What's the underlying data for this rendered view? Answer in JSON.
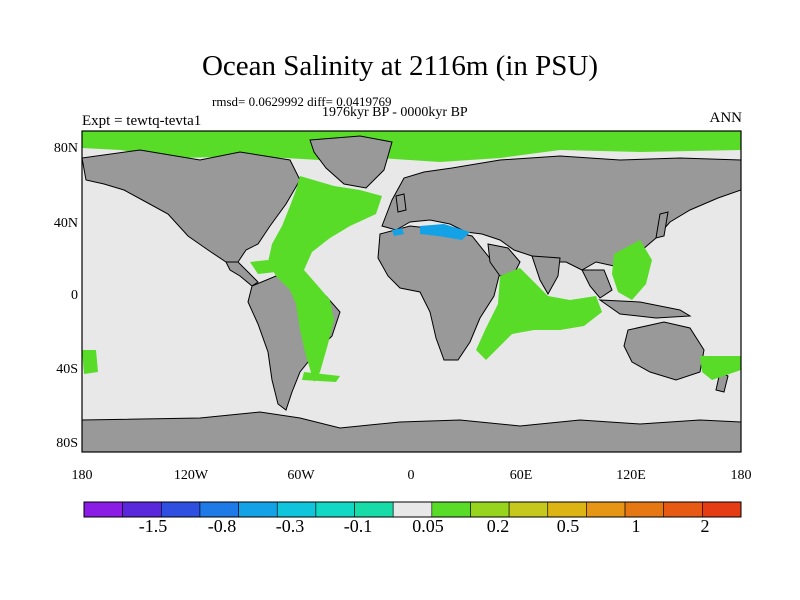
{
  "title": "Ocean Salinity at 2116m (in PSU)",
  "stats_line": "rmsd= 0.0629992 diff= 0.0419769",
  "period": "1976kyr BP - 0000kyr BP",
  "experiment": "Expt = tewtq-tevta1",
  "season": "ANN",
  "axes": {
    "y_ticks": [
      "80N",
      "40N",
      "0",
      "40S",
      "80S"
    ],
    "x_ticks": [
      "180",
      "120W",
      "60W",
      "0",
      "60E",
      "120E",
      "180"
    ]
  },
  "colorbar": {
    "colors": [
      "#8a1ce6",
      "#5a28dc",
      "#2f4fe0",
      "#1e7ae6",
      "#14a2e6",
      "#10c4dc",
      "#10d8c4",
      "#18dca8",
      "#e8e8e8",
      "#58dc28",
      "#96d41e",
      "#c6c81e",
      "#dcb414",
      "#e69614",
      "#e67814",
      "#e65a14",
      "#e63c14"
    ],
    "labels": [
      "-1.5",
      "-0.8",
      "-0.3",
      "-0.1",
      "0.05",
      "0.2",
      "0.5",
      "1",
      "2"
    ]
  },
  "colors": {
    "land": "#999999",
    "ocean_neutral": "#e8e8e8",
    "positive_anomaly": "#58dc28",
    "negative_anomaly": "#14a2e6",
    "coast": "#000000"
  }
}
